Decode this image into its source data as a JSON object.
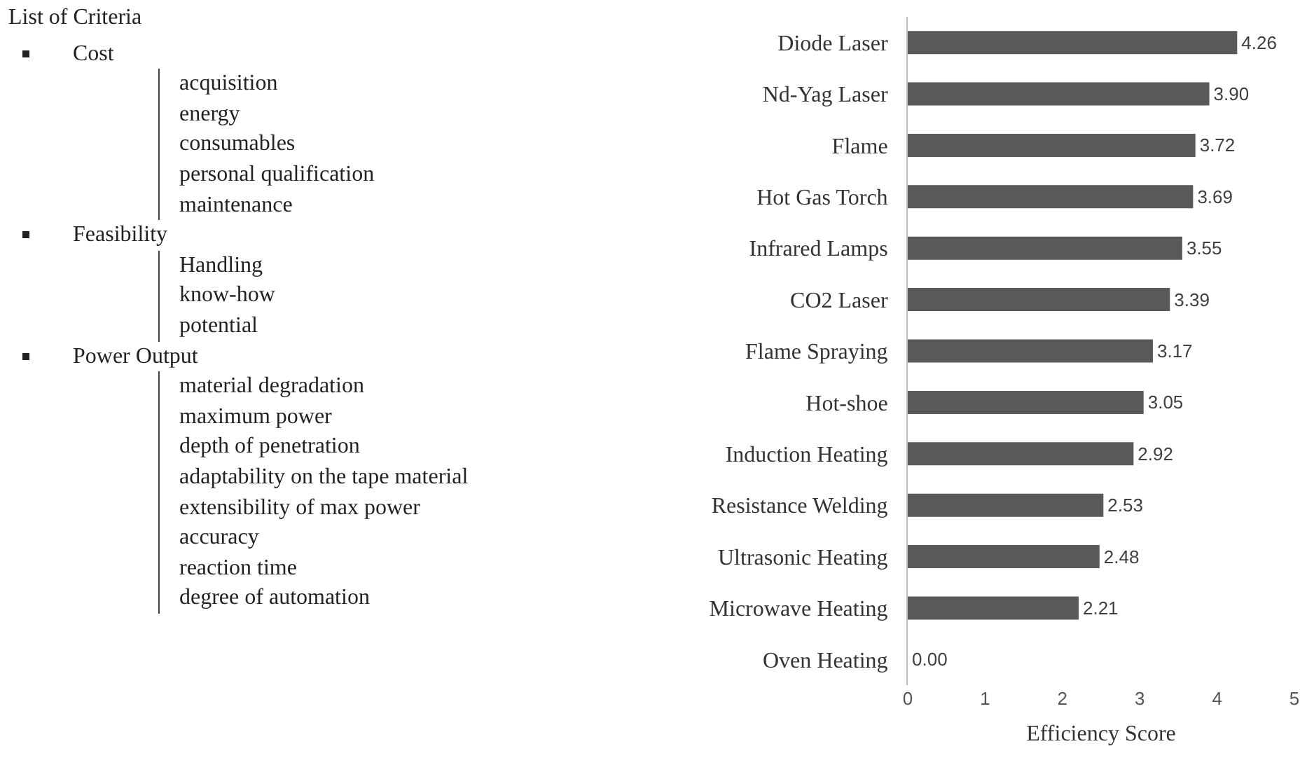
{
  "chart_data": {
    "type": "bar",
    "orientation": "horizontal",
    "categories": [
      "Diode Laser",
      "Nd-Yag Laser",
      "Flame",
      "Hot Gas Torch",
      "Infrared Lamps",
      "CO2 Laser",
      "Flame Spraying",
      "Hot-shoe",
      "Induction Heating",
      "Resistance Welding",
      "Ultrasonic Heating",
      "Microwave Heating",
      "Oven Heating"
    ],
    "values": [
      4.26,
      3.9,
      3.72,
      3.69,
      3.55,
      3.39,
      3.17,
      3.05,
      2.92,
      2.53,
      2.48,
      2.21,
      0.0
    ],
    "value_labels": [
      "4.26",
      "3.90",
      "3.72",
      "3.69",
      "3.55",
      "3.39",
      "3.17",
      "3.05",
      "2.92",
      "2.53",
      "2.48",
      "2.21",
      "0.00"
    ],
    "color": "#595959",
    "xlabel": "Efficiency Score",
    "xlim": [
      0,
      5
    ],
    "xticks": [
      0,
      1,
      2,
      3,
      4,
      5
    ],
    "grid": false,
    "legend": false,
    "annotations": [
      "List of Criteria",
      "Cost",
      "acquisition",
      "energy",
      "consumables",
      "personal qualification",
      "maintenance",
      "Feasibility",
      "Handling",
      "know-how",
      "potential",
      "Power Output",
      "material degradation",
      "maximum power",
      "depth of penetration",
      "adaptability on the tape material",
      "extensibility of max power",
      "accuracy",
      "reaction time",
      "degree of automation"
    ]
  }
}
